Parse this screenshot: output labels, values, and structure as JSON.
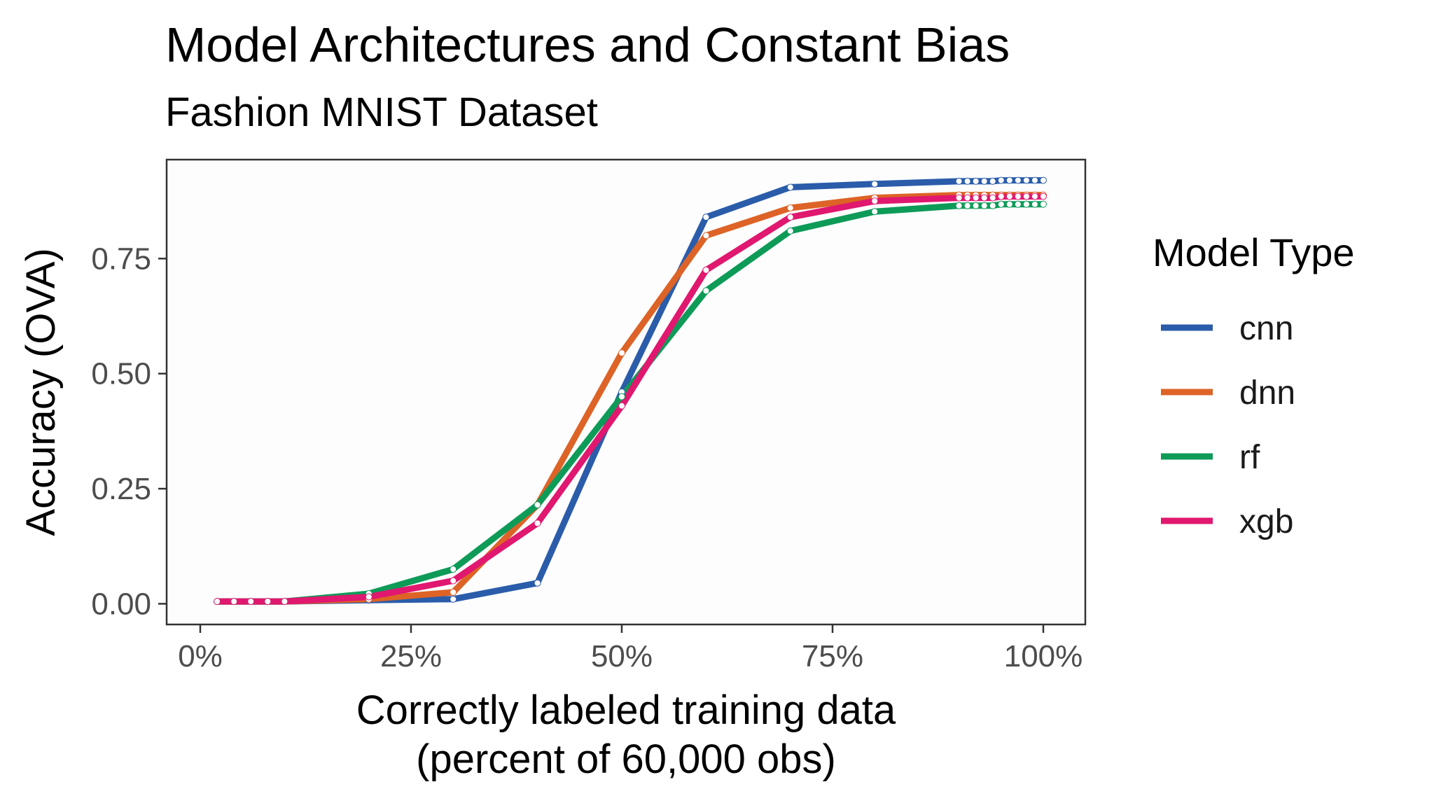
{
  "chart_data": {
    "type": "line",
    "title": "Model Architectures and Constant Bias",
    "subtitle": "Fashion MNIST Dataset",
    "xlabel_lines": [
      "Correctly labeled training data",
      "(percent of 60,000 obs)"
    ],
    "ylabel": "Accuracy (OVA)",
    "xlim": [
      0,
      100
    ],
    "ylim": [
      -0.045,
      0.965
    ],
    "x_ticks": [
      0,
      25,
      50,
      75,
      100
    ],
    "x_tick_labels": [
      "0%",
      "25%",
      "50%",
      "75%",
      "100%"
    ],
    "y_ticks": [
      0.0,
      0.25,
      0.5,
      0.75
    ],
    "y_tick_labels": [
      "0.00",
      "0.25",
      "0.50",
      "0.75"
    ],
    "grid": false,
    "legend": {
      "title": "Model Type",
      "placement": "right"
    },
    "series": [
      {
        "name": "cnn",
        "color": "#2a5caa",
        "x": [
          2,
          4,
          6,
          8,
          10,
          20,
          30,
          40,
          50,
          60,
          70,
          80,
          90,
          91,
          92,
          93,
          94,
          95,
          96,
          97,
          98,
          99,
          100
        ],
        "y": [
          0.005,
          0.005,
          0.005,
          0.005,
          0.005,
          0.008,
          0.01,
          0.045,
          0.46,
          0.84,
          0.905,
          0.912,
          0.918,
          0.918,
          0.918,
          0.918,
          0.918,
          0.92,
          0.92,
          0.92,
          0.92,
          0.92,
          0.92
        ]
      },
      {
        "name": "dnn",
        "color": "#dd6326",
        "x": [
          2,
          4,
          6,
          8,
          10,
          20,
          30,
          40,
          50,
          60,
          70,
          80,
          90,
          91,
          92,
          93,
          94,
          95,
          96,
          97,
          98,
          99,
          100
        ],
        "y": [
          0.005,
          0.005,
          0.005,
          0.005,
          0.005,
          0.01,
          0.025,
          0.215,
          0.545,
          0.8,
          0.86,
          0.882,
          0.888,
          0.888,
          0.888,
          0.888,
          0.888,
          0.888,
          0.888,
          0.888,
          0.888,
          0.888,
          0.888
        ]
      },
      {
        "name": "rf",
        "color": "#0e9b58",
        "x": [
          2,
          4,
          6,
          8,
          10,
          20,
          30,
          40,
          50,
          60,
          70,
          80,
          90,
          91,
          92,
          93,
          94,
          95,
          96,
          97,
          98,
          99,
          100
        ],
        "y": [
          0.005,
          0.005,
          0.005,
          0.005,
          0.005,
          0.022,
          0.075,
          0.215,
          0.45,
          0.68,
          0.81,
          0.852,
          0.865,
          0.865,
          0.865,
          0.865,
          0.865,
          0.868,
          0.868,
          0.868,
          0.868,
          0.868,
          0.868
        ]
      },
      {
        "name": "xgb",
        "color": "#e0186f",
        "x": [
          2,
          4,
          6,
          8,
          10,
          20,
          30,
          40,
          50,
          60,
          70,
          80,
          90,
          91,
          92,
          93,
          94,
          95,
          96,
          97,
          98,
          99,
          100
        ],
        "y": [
          0.005,
          0.005,
          0.005,
          0.005,
          0.005,
          0.015,
          0.05,
          0.175,
          0.43,
          0.725,
          0.84,
          0.875,
          0.882,
          0.882,
          0.882,
          0.882,
          0.882,
          0.885,
          0.885,
          0.885,
          0.885,
          0.885,
          0.885
        ]
      }
    ]
  }
}
